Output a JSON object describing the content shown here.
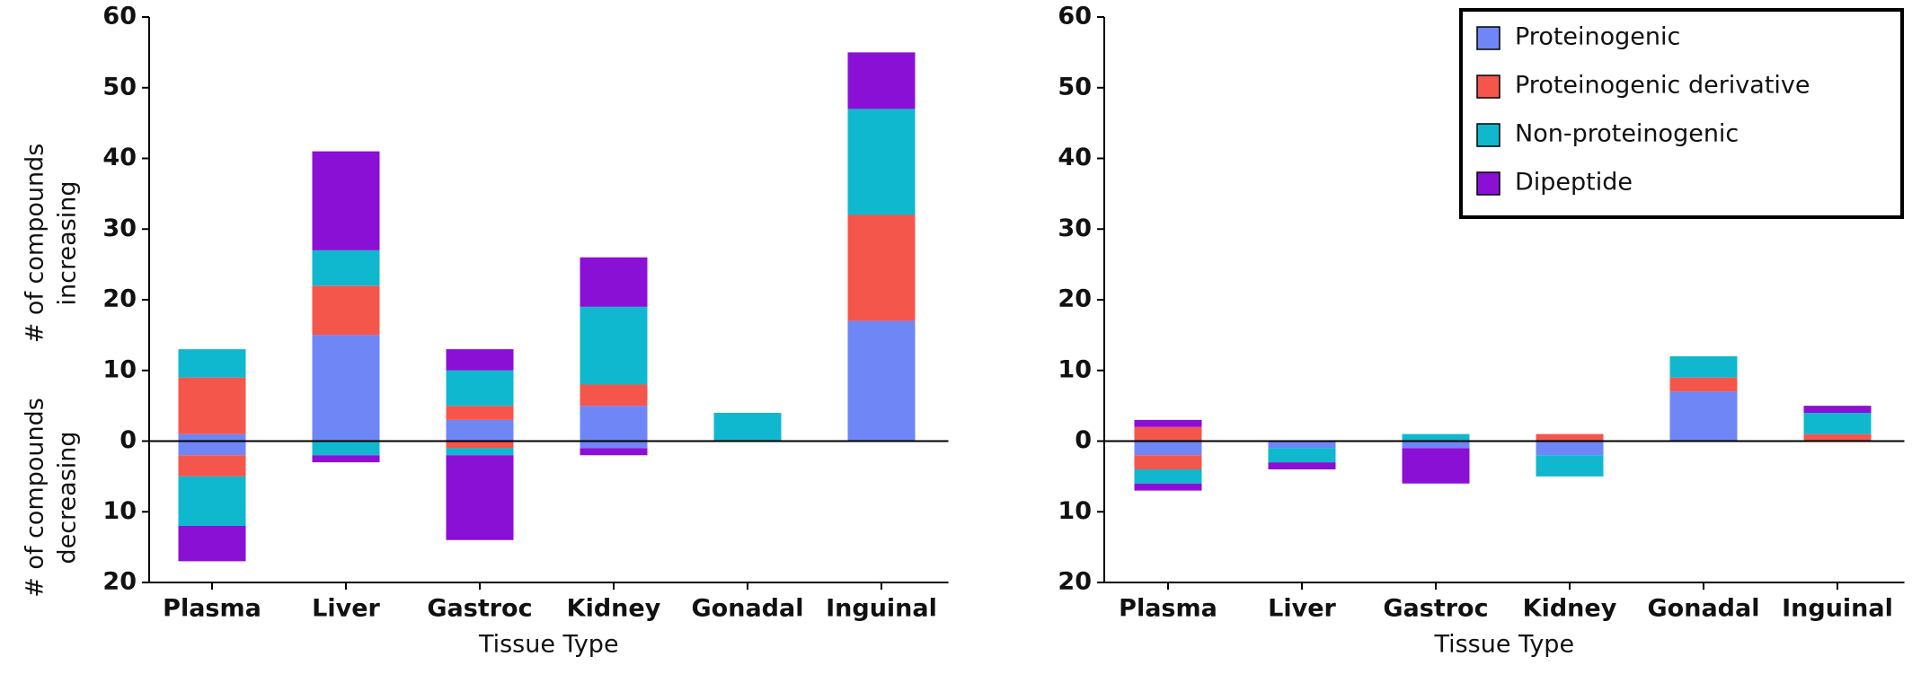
{
  "chart_data": [
    {
      "type": "bar",
      "stacked": true,
      "y_label_top": [
        "# of compounds",
        "increasing"
      ],
      "y_label_bottom": [
        "# of compounds",
        "decreasing"
      ],
      "x_label": "Tissue Type",
      "categories": [
        "Plasma",
        "Liver",
        "Gastroc",
        "Kidney",
        "Gonadal",
        "Inguinal"
      ],
      "ylim": [
        -20,
        60
      ],
      "yticks": [
        60,
        50,
        40,
        30,
        20,
        10,
        0,
        {
          "value": -10,
          "label": "10"
        },
        {
          "value": -20,
          "label": "20"
        }
      ],
      "series": [
        {
          "name": "Proteinogenic",
          "color": "#6f86f7",
          "values": [
            1,
            15,
            3,
            5,
            0,
            17
          ],
          "decreasing": [
            -2,
            0,
            0,
            -1,
            0,
            0
          ]
        },
        {
          "name": "Proteinogenic derivative",
          "color": "#f5564c",
          "values": [
            8,
            7,
            2,
            3,
            0,
            15
          ],
          "decreasing": [
            -3,
            0,
            -1,
            0,
            0,
            0
          ]
        },
        {
          "name": "Non-proteinogenic",
          "color": "#10b8cf",
          "values": [
            4,
            5,
            5,
            11,
            4,
            15
          ],
          "decreasing": [
            -7,
            -2,
            -1,
            0,
            0,
            0
          ]
        },
        {
          "name": "Dipeptide",
          "color": "#8b10d6",
          "values": [
            0,
            14,
            3,
            7,
            0,
            8
          ],
          "decreasing": [
            -5,
            -1,
            -12,
            -1,
            0,
            0
          ]
        }
      ]
    },
    {
      "type": "bar",
      "stacked": true,
      "legend": "upper right",
      "x_label": "Tissue Type",
      "categories": [
        "Plasma",
        "Liver",
        "Gastroc",
        "Kidney",
        "Gonadal",
        "Inguinal"
      ],
      "ylim": [
        -20,
        60
      ],
      "yticks": [
        60,
        50,
        40,
        30,
        20,
        10,
        0,
        {
          "value": -10,
          "label": "10"
        },
        {
          "value": -20,
          "label": "20"
        }
      ],
      "series": [
        {
          "name": "Proteinogenic",
          "color": "#6f86f7",
          "values": [
            0,
            0,
            0,
            0,
            7,
            0
          ],
          "decreasing": [
            -2,
            -1,
            -1,
            -2,
            0,
            0
          ]
        },
        {
          "name": "Proteinogenic derivative",
          "color": "#f5564c",
          "values": [
            2,
            0,
            0,
            1,
            2,
            1
          ],
          "decreasing": [
            -2,
            0,
            0,
            0,
            0,
            0
          ]
        },
        {
          "name": "Non-proteinogenic",
          "color": "#10b8cf",
          "values": [
            0,
            0,
            1,
            0,
            3,
            3
          ],
          "decreasing": [
            -2,
            -2,
            0,
            -3,
            0,
            0
          ]
        },
        {
          "name": "Dipeptide",
          "color": "#8b10d6",
          "values": [
            1,
            0,
            0,
            0,
            0,
            1
          ],
          "decreasing": [
            -1,
            -1,
            -5,
            0,
            0,
            0
          ]
        }
      ]
    }
  ]
}
